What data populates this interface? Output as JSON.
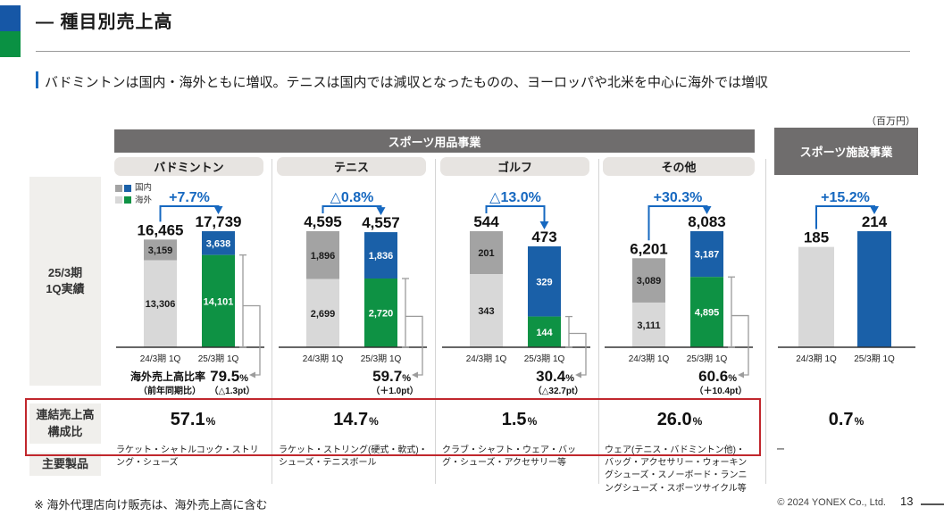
{
  "slide": {
    "title": "— 種目別売上高",
    "subtitle": "バドミントンは国内・海外ともに増収。テニスは国内では減収となったものの、ヨーロッパや北米を中心に海外では増収",
    "unit": "（百万円）",
    "footnote": "※ 海外代理店向け販売は、海外売上高に含む",
    "copyright": "© 2024 YONEX Co., Ltd.",
    "page": "13"
  },
  "sections": {
    "goods": "スポーツ用品事業",
    "facility": "スポーツ施設事業"
  },
  "legend": {
    "domestic": "国内",
    "overseas": "海外"
  },
  "sidebar": {
    "period_line1": "25/3期",
    "period_line2": "1Q実績",
    "composition_line1": "連結売上高",
    "composition_line2": "構成比",
    "products": "主要製品"
  },
  "colors": {
    "domestic_prev": "#a3a3a3",
    "domestic_cur": "#1a60a8",
    "overseas_prev": "#d8d8d8",
    "overseas_cur": "#0e9244",
    "accent_blue": "#1668c0",
    "gray_callout": "#9c9c9c",
    "red_box": "#c1272d",
    "band_gray": "#6f6d6d"
  },
  "chart_data": [
    {
      "key": "badminton",
      "label": "バドミントン",
      "type": "bar",
      "stacked": true,
      "unit": "百万円",
      "categories": [
        "24/3期 1Q",
        "25/3期 1Q"
      ],
      "series": [
        {
          "name": "国内",
          "values": [
            3159,
            3638
          ]
        },
        {
          "name": "海外",
          "values": [
            13306,
            14101
          ]
        }
      ],
      "totals": [
        16465,
        17739
      ],
      "change_label": "+7.7%",
      "overseas_ratio": {
        "label": "海外売上高比率",
        "sub_label": "（前年同期比）",
        "value": "79.5",
        "pt": "（△1.3pt）"
      },
      "composition": "57.1",
      "products": "ラケット・シャトルコック・ストリング・シューズ"
    },
    {
      "key": "tennis",
      "label": "テニス",
      "type": "bar",
      "stacked": true,
      "unit": "百万円",
      "categories": [
        "24/3期 1Q",
        "25/3期 1Q"
      ],
      "series": [
        {
          "name": "国内",
          "values": [
            1896,
            1836
          ]
        },
        {
          "name": "海外",
          "values": [
            2699,
            2720
          ]
        }
      ],
      "totals": [
        4595,
        4557
      ],
      "change_label": "△0.8%",
      "overseas_ratio": {
        "value": "59.7",
        "pt": "（＋1.0pt）"
      },
      "composition": "14.7",
      "products": "ラケット・ストリング(硬式・軟式)・シューズ・テニスボール"
    },
    {
      "key": "golf",
      "label": "ゴルフ",
      "type": "bar",
      "stacked": true,
      "unit": "百万円",
      "categories": [
        "24/3期 1Q",
        "25/3期 1Q"
      ],
      "series": [
        {
          "name": "国内",
          "values": [
            201,
            329
          ]
        },
        {
          "name": "海外",
          "values": [
            343,
            144
          ]
        }
      ],
      "totals": [
        544,
        473
      ],
      "change_label": "△13.0%",
      "overseas_ratio": {
        "value": "30.4",
        "pt": "（△32.7pt）"
      },
      "composition": "1.5",
      "products": "クラブ・シャフト・ウェア・バッグ・シューズ・アクセサリー等"
    },
    {
      "key": "others",
      "label": "その他",
      "type": "bar",
      "stacked": true,
      "unit": "百万円",
      "categories": [
        "24/3期 1Q",
        "25/3期 1Q"
      ],
      "series": [
        {
          "name": "国内",
          "values": [
            3089,
            3187
          ]
        },
        {
          "name": "海外",
          "values": [
            3111,
            4895
          ]
        }
      ],
      "totals": [
        6201,
        8083
      ],
      "change_label": "+30.3%",
      "overseas_ratio": {
        "value": "60.6",
        "pt": "（＋10.4pt）"
      },
      "composition": "26.0",
      "products": "ウェア(テニス・バドミントン他)・バッグ・アクセサリー・ウォーキングシューズ・スノーボード・ランニングシューズ・スポーツサイクル等"
    },
    {
      "key": "facility",
      "label": "スポーツ施設事業",
      "type": "bar",
      "stacked": false,
      "unit": "百万円",
      "categories": [
        "24/3期 1Q",
        "25/3期 1Q"
      ],
      "values": [
        185,
        214
      ],
      "totals": [
        185,
        214
      ],
      "change_label": "+15.2%",
      "composition": "0.7",
      "products": "ー"
    }
  ]
}
